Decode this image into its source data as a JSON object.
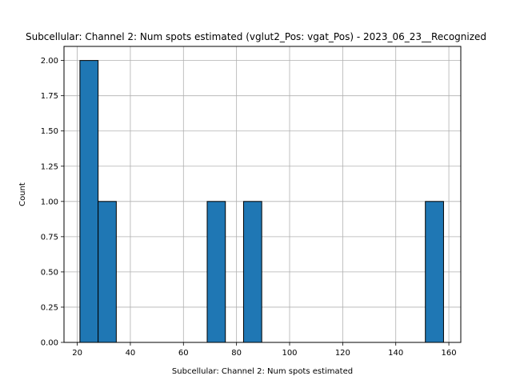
{
  "chart_data": {
    "type": "bar",
    "title": "Subcellular: Channel 2: Num spots estimated (vglut2_Pos: vgat_Pos) - 2023_06_23__Recognized",
    "xlabel": "Subcellular: Channel 2: Num spots estimated",
    "ylabel": "Count",
    "xlim": [
      15,
      164.5
    ],
    "ylim": [
      0,
      2.1
    ],
    "xticks": [
      20,
      40,
      60,
      80,
      100,
      120,
      140,
      160
    ],
    "yticks": [
      0.0,
      0.25,
      0.5,
      0.75,
      1.0,
      1.25,
      1.5,
      1.75,
      2.0
    ],
    "ytick_labels": [
      "0.00",
      "0.25",
      "0.50",
      "0.75",
      "1.00",
      "1.25",
      "1.50",
      "1.75",
      "2.00"
    ],
    "grid": true,
    "bar_color": "#1f77b4",
    "edge_color": "#000000",
    "bins": [
      {
        "x0": 21.0,
        "x1": 27.85,
        "count": 2
      },
      {
        "x0": 27.85,
        "x1": 34.7,
        "count": 1
      },
      {
        "x0": 34.7,
        "x1": 41.55,
        "count": 0
      },
      {
        "x0": 41.55,
        "x1": 48.4,
        "count": 0
      },
      {
        "x0": 48.4,
        "x1": 55.25,
        "count": 0
      },
      {
        "x0": 55.25,
        "x1": 62.1,
        "count": 0
      },
      {
        "x0": 62.1,
        "x1": 68.95,
        "count": 0
      },
      {
        "x0": 68.95,
        "x1": 75.8,
        "count": 1
      },
      {
        "x0": 75.8,
        "x1": 82.65,
        "count": 0
      },
      {
        "x0": 82.65,
        "x1": 89.5,
        "count": 1
      },
      {
        "x0": 89.5,
        "x1": 96.35,
        "count": 0
      },
      {
        "x0": 96.35,
        "x1": 103.2,
        "count": 0
      },
      {
        "x0": 103.2,
        "x1": 110.05,
        "count": 0
      },
      {
        "x0": 110.05,
        "x1": 116.9,
        "count": 0
      },
      {
        "x0": 116.9,
        "x1": 123.75,
        "count": 0
      },
      {
        "x0": 123.75,
        "x1": 130.6,
        "count": 0
      },
      {
        "x0": 130.6,
        "x1": 137.45,
        "count": 0
      },
      {
        "x0": 137.45,
        "x1": 144.3,
        "count": 0
      },
      {
        "x0": 144.3,
        "x1": 151.15,
        "count": 0
      },
      {
        "x0": 151.15,
        "x1": 158.0,
        "count": 1
      }
    ]
  }
}
